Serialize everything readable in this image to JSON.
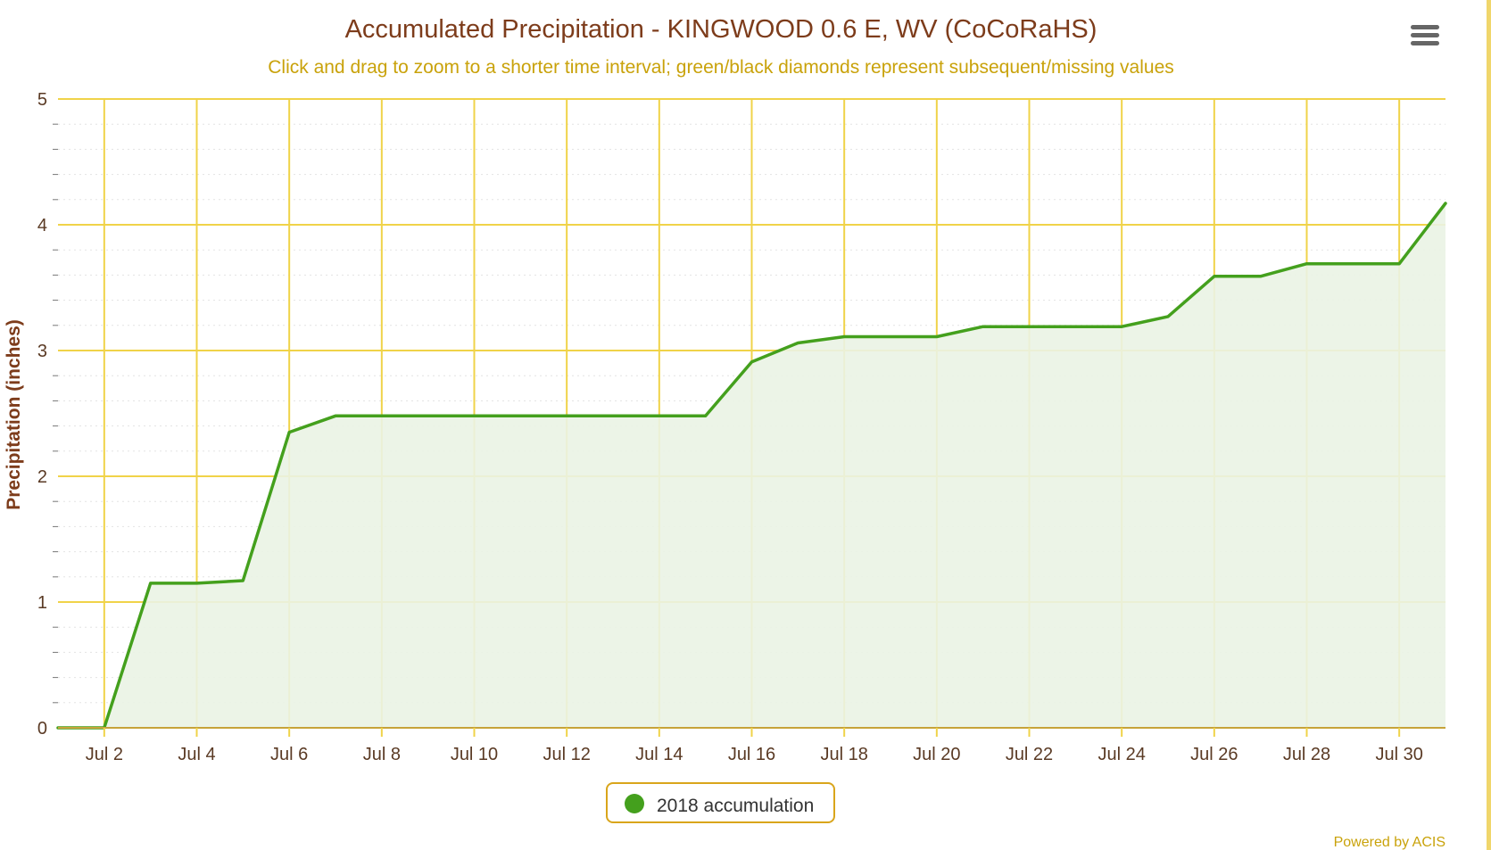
{
  "chart_data": {
    "type": "area",
    "title": "Accumulated Precipitation - KINGWOOD 0.6 E, WV (CoCoRaHS)",
    "subtitle": "Click and drag to zoom to a shorter time interval; green/black diamonds represent subsequent/missing values",
    "ylabel": "Precipitation (inches)",
    "xlabel": "",
    "ylim": [
      0,
      5
    ],
    "y_ticks": [
      "0",
      "1",
      "2",
      "3",
      "4",
      "5"
    ],
    "x_ticks": [
      "Jul 2",
      "Jul 4",
      "Jul 6",
      "Jul 8",
      "Jul 10",
      "Jul 12",
      "Jul 14",
      "Jul 16",
      "Jul 18",
      "Jul 20",
      "Jul 22",
      "Jul 24",
      "Jul 26",
      "Jul 28",
      "Jul 30"
    ],
    "x": [
      "2018-07-01",
      "2018-07-02",
      "2018-07-03",
      "2018-07-04",
      "2018-07-05",
      "2018-07-06",
      "2018-07-07",
      "2018-07-08",
      "2018-07-09",
      "2018-07-10",
      "2018-07-11",
      "2018-07-12",
      "2018-07-13",
      "2018-07-14",
      "2018-07-15",
      "2018-07-16",
      "2018-07-17",
      "2018-07-18",
      "2018-07-19",
      "2018-07-20",
      "2018-07-21",
      "2018-07-22",
      "2018-07-23",
      "2018-07-24",
      "2018-07-25",
      "2018-07-26",
      "2018-07-27",
      "2018-07-28",
      "2018-07-29",
      "2018-07-30",
      "2018-07-31"
    ],
    "series": [
      {
        "name": "2018 accumulation",
        "color": "#44a01d",
        "values": [
          0.0,
          0.0,
          1.15,
          1.15,
          1.17,
          2.35,
          2.48,
          2.48,
          2.48,
          2.48,
          2.48,
          2.48,
          2.48,
          2.48,
          2.48,
          2.91,
          3.06,
          3.11,
          3.11,
          3.11,
          3.19,
          3.19,
          3.19,
          3.19,
          3.27,
          3.59,
          3.59,
          3.69,
          3.69,
          3.69,
          4.17
        ]
      }
    ],
    "grid": true,
    "legend": "bottom-center",
    "colors": {
      "title": "#7d3c1b",
      "subtitle": "#c9a20a",
      "grid": "#f0d349",
      "axis_text": "#5a3a24",
      "area_fill": "#eaf3e4",
      "legend_border": "#d9a51b",
      "credits": "#c9a20a"
    }
  },
  "legend": {
    "label": "2018 accumulation"
  },
  "credits": {
    "text": "Powered by ACIS"
  },
  "menu": {
    "icon": "hamburger-menu-icon"
  }
}
